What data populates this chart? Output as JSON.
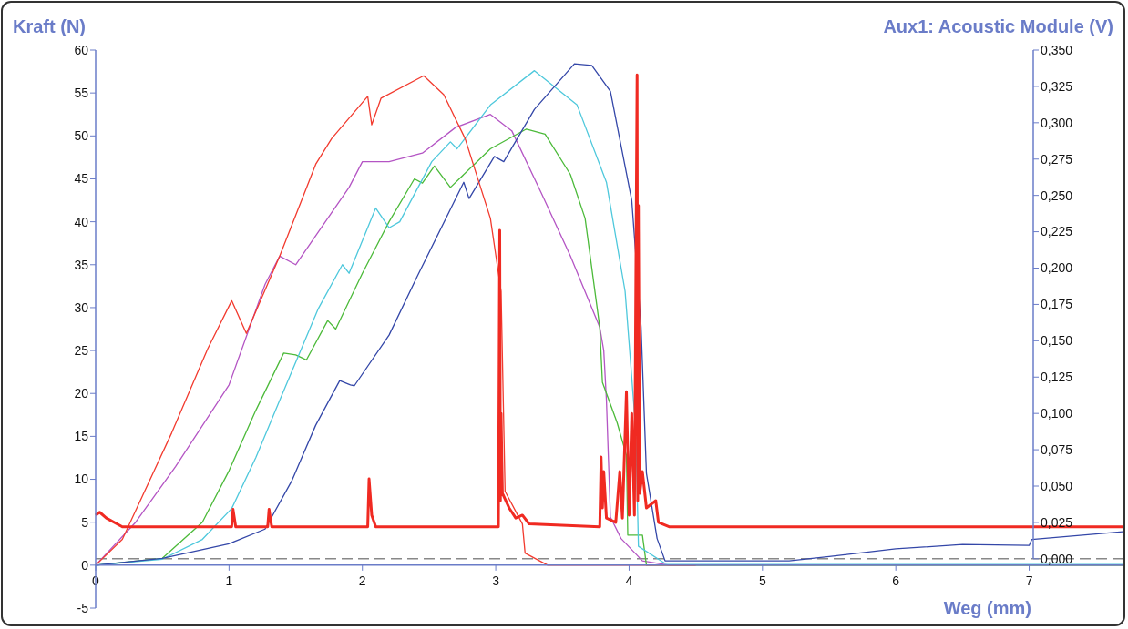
{
  "chart_data": {
    "type": "line",
    "ylabel": "Kraft (N)",
    "y2label": "Aux1: Acoustic Module (V)",
    "xlabel": "Weg (mm)",
    "xlim": [
      0,
      7.7
    ],
    "xticks": [
      0,
      1,
      2,
      3,
      4,
      5,
      6,
      7
    ],
    "ylim": [
      -5,
      60
    ],
    "yticks": [
      -5,
      0,
      5,
      10,
      15,
      20,
      25,
      30,
      35,
      40,
      45,
      50,
      55,
      60
    ],
    "y2lim": [
      0,
      0.35
    ],
    "y2ticks": [
      {
        "value": 0,
        "label": "0,000"
      },
      {
        "value": 0.025,
        "label": "0,025"
      },
      {
        "value": 0.05,
        "label": "0,050"
      },
      {
        "value": 0.075,
        "label": "0,075"
      },
      {
        "value": 0.1,
        "label": "0,100"
      },
      {
        "value": 0.125,
        "label": "0,125"
      },
      {
        "value": 0.15,
        "label": "0,150"
      },
      {
        "value": 0.175,
        "label": "0,175"
      },
      {
        "value": 0.2,
        "label": "0,200"
      },
      {
        "value": 0.225,
        "label": "0,225"
      },
      {
        "value": 0.25,
        "label": "0,250"
      },
      {
        "value": 0.275,
        "label": "0,275"
      },
      {
        "value": 0.3,
        "label": "0,300"
      },
      {
        "value": 0.325,
        "label": "0,325"
      },
      {
        "value": 0.35,
        "label": "0,350"
      }
    ],
    "grid": false,
    "line_style": "solid",
    "marker": "none",
    "ref_lines": [
      {
        "axis": "y2",
        "value": 0,
        "color": "#888888",
        "line_style": "dashed"
      }
    ],
    "series": [
      {
        "color": "#b455c4",
        "x": [
          0,
          0.3,
          0.6,
          1.0,
          1.27,
          1.38,
          1.5,
          1.7,
          1.9,
          2.0,
          2.2,
          2.45,
          2.7,
          2.96,
          3.12,
          3.34,
          3.56,
          3.78,
          3.81,
          3.83,
          3.86,
          3.94,
          4.1,
          4.3,
          7.7
        ],
        "values": [
          0,
          5,
          11.5,
          21,
          32.7,
          36,
          35,
          39.5,
          44,
          47,
          47,
          48,
          51,
          52.5,
          50.6,
          43.4,
          36,
          27.7,
          25,
          19.2,
          5.6,
          3.1,
          0.5,
          0,
          0
        ]
      },
      {
        "color": "#4cba3a",
        "x": [
          0,
          0.5,
          0.8,
          1.0,
          1.2,
          1.41,
          1.5,
          1.58,
          1.74,
          1.8,
          2.0,
          2.2,
          2.39,
          2.45,
          2.54,
          2.66,
          2.96,
          3.23,
          3.37,
          3.56,
          3.67,
          3.78,
          3.8,
          3.91,
          3.98,
          3.99,
          4.1,
          4.13,
          7.7
        ],
        "values": [
          0,
          0.8,
          5,
          11,
          18,
          24.7,
          24.5,
          23.9,
          28.5,
          27.5,
          34,
          40,
          45,
          44.5,
          46.5,
          44,
          48.5,
          50.8,
          50.2,
          45.5,
          40.4,
          27.7,
          21.3,
          16.6,
          12.8,
          3.5,
          3.5,
          0,
          0
        ]
      },
      {
        "color": "#4ec8dc",
        "x": [
          0,
          0.5,
          0.8,
          1.02,
          1.2,
          1.38,
          1.67,
          1.85,
          1.9,
          2.1,
          2.2,
          2.28,
          2.52,
          2.66,
          2.71,
          2.96,
          3.29,
          3.61,
          3.83,
          3.97,
          4.05,
          4.07,
          4.27,
          7.7
        ],
        "values": [
          0,
          0.7,
          3,
          6.6,
          12.5,
          19.2,
          29.9,
          35,
          34,
          41.6,
          39.3,
          40,
          47,
          49.3,
          48.5,
          53.6,
          57.6,
          53.6,
          44.6,
          31.9,
          15.8,
          2.2,
          0.2,
          0.2
        ]
      },
      {
        "color": "#3447a8",
        "x": [
          0,
          0.5,
          1.0,
          1.27,
          1.47,
          1.65,
          1.83,
          1.91,
          1.94,
          2.2,
          2.41,
          2.76,
          2.8,
          2.99,
          3.06,
          3.29,
          3.59,
          3.72,
          3.86,
          4.02,
          4.09,
          4.13,
          4.21,
          4.27,
          5.2,
          5.5,
          6.0,
          6.5,
          7.0,
          7.02,
          7.7
        ],
        "values": [
          0,
          0.8,
          2.5,
          4.2,
          9.8,
          16.3,
          21.5,
          21,
          20.9,
          26.8,
          33.6,
          44.6,
          42.7,
          47.6,
          47,
          53.1,
          58.4,
          58.2,
          55.2,
          42.5,
          27.7,
          10.7,
          3.1,
          0.5,
          0.5,
          1.0,
          1.9,
          2.4,
          2.3,
          3.0,
          3.9
        ]
      },
      {
        "color": "#f23a2e",
        "x": [
          0,
          0.2,
          0.57,
          0.84,
          1.02,
          1.13,
          1.38,
          1.65,
          1.77,
          2.04,
          2.07,
          2.14,
          2.46,
          2.61,
          2.77,
          2.96,
          3.04,
          3.07,
          3.2,
          3.22,
          3.39,
          4.5
        ],
        "values": [
          0,
          3,
          15.4,
          25.2,
          30.8,
          27,
          36,
          46.7,
          49.7,
          54.6,
          51.3,
          54.4,
          57,
          54.8,
          49.7,
          40.4,
          31.9,
          8.6,
          4.8,
          1.4,
          0,
          0
        ]
      },
      {
        "color": "#f02a22",
        "axis": "y2",
        "x": [
          0,
          0.03,
          0.08,
          0.2,
          1.02,
          1.03,
          1.05,
          1.29,
          1.3,
          1.32,
          2.04,
          2.05,
          2.07,
          2.1,
          3.02,
          3.03,
          3.035,
          3.04,
          3.05,
          3.1,
          3.15,
          3.2,
          3.25,
          3.78,
          3.79,
          3.8,
          3.81,
          3.83,
          3.9,
          3.93,
          3.95,
          3.98,
          4.0,
          4.02,
          4.04,
          4.06,
          4.065,
          4.07,
          4.08,
          4.1,
          4.13,
          4.2,
          4.22,
          4.3,
          7.7
        ],
        "values": [
          0.03,
          0.032,
          0.028,
          0.022,
          0.022,
          0.034,
          0.022,
          0.022,
          0.034,
          0.022,
          0.022,
          0.055,
          0.03,
          0.022,
          0.022,
          0.226,
          0.04,
          0.1,
          0.045,
          0.035,
          0.028,
          0.03,
          0.024,
          0.022,
          0.07,
          0.035,
          0.06,
          0.028,
          0.025,
          0.06,
          0.028,
          0.115,
          0.03,
          0.1,
          0.03,
          0.333,
          0.04,
          0.243,
          0.045,
          0.06,
          0.035,
          0.04,
          0.025,
          0.022,
          0.022
        ]
      }
    ]
  }
}
